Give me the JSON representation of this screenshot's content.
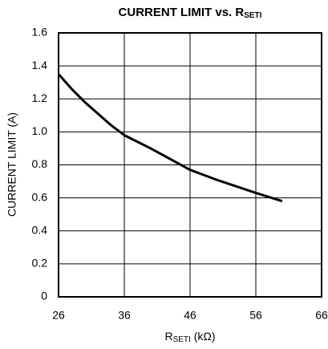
{
  "chart_data": {
    "type": "line",
    "title": "CURRENT LIMIT vs. R",
    "title_subscript": "SETI",
    "x_label": "R",
    "x_label_subscript": "SETI",
    "x_label_unit": " (kΩ)",
    "y_label": "CURRENT LIMIT (A)",
    "x": [
      26,
      28,
      30,
      32,
      34,
      36,
      40,
      46,
      50,
      56,
      60
    ],
    "series": [
      {
        "color": "#000000",
        "values": [
          1.35,
          1.26,
          1.18,
          1.11,
          1.04,
          0.98,
          0.9,
          0.77,
          0.71,
          0.63,
          0.58
        ]
      }
    ],
    "xlim": [
      26,
      66
    ],
    "xticks": [
      26,
      36,
      46,
      56,
      66
    ],
    "ylim": [
      0,
      1.6
    ],
    "yticks": [
      0,
      {
        "value": 0.2,
        "label": "0.2"
      },
      {
        "value": 0.4,
        "label": "0.4"
      },
      {
        "value": 0.6,
        "label": "0.6"
      },
      {
        "value": 0.8,
        "label": "0.8"
      },
      {
        "value": 1.0,
        "label": "1.0"
      },
      {
        "value": 1.2,
        "label": "1.2"
      },
      {
        "value": 1.4,
        "label": "1.4"
      },
      {
        "value": 1.6,
        "label": "1.6"
      }
    ],
    "grid": true
  }
}
